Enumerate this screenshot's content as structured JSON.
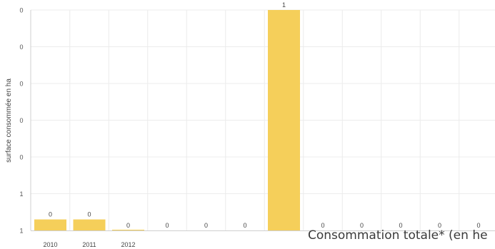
{
  "chart_data": {
    "type": "bar",
    "ylabel": "surface consommée en ha",
    "x_tick_labels": [
      "2010",
      "2011",
      "2012",
      "",
      "",
      "",
      "",
      "",
      "",
      "",
      "",
      "",
      ""
    ],
    "y_tick_labels": [
      "1",
      "1",
      "0",
      "0",
      "0",
      "0",
      "0"
    ],
    "values": [
      0.06,
      0.06,
      0.004,
      0,
      0,
      0,
      1.2,
      0,
      0,
      0,
      0,
      0,
      0
    ],
    "value_labels": [
      "0",
      "0",
      "0",
      "0",
      "0",
      "0",
      "1",
      "0",
      "0",
      "0",
      "0",
      "0",
      "0"
    ],
    "ylim": [
      0,
      1.2
    ],
    "grid": true,
    "bar_color": "#f5cf5a"
  },
  "caption": "Consommation totale* (en he"
}
